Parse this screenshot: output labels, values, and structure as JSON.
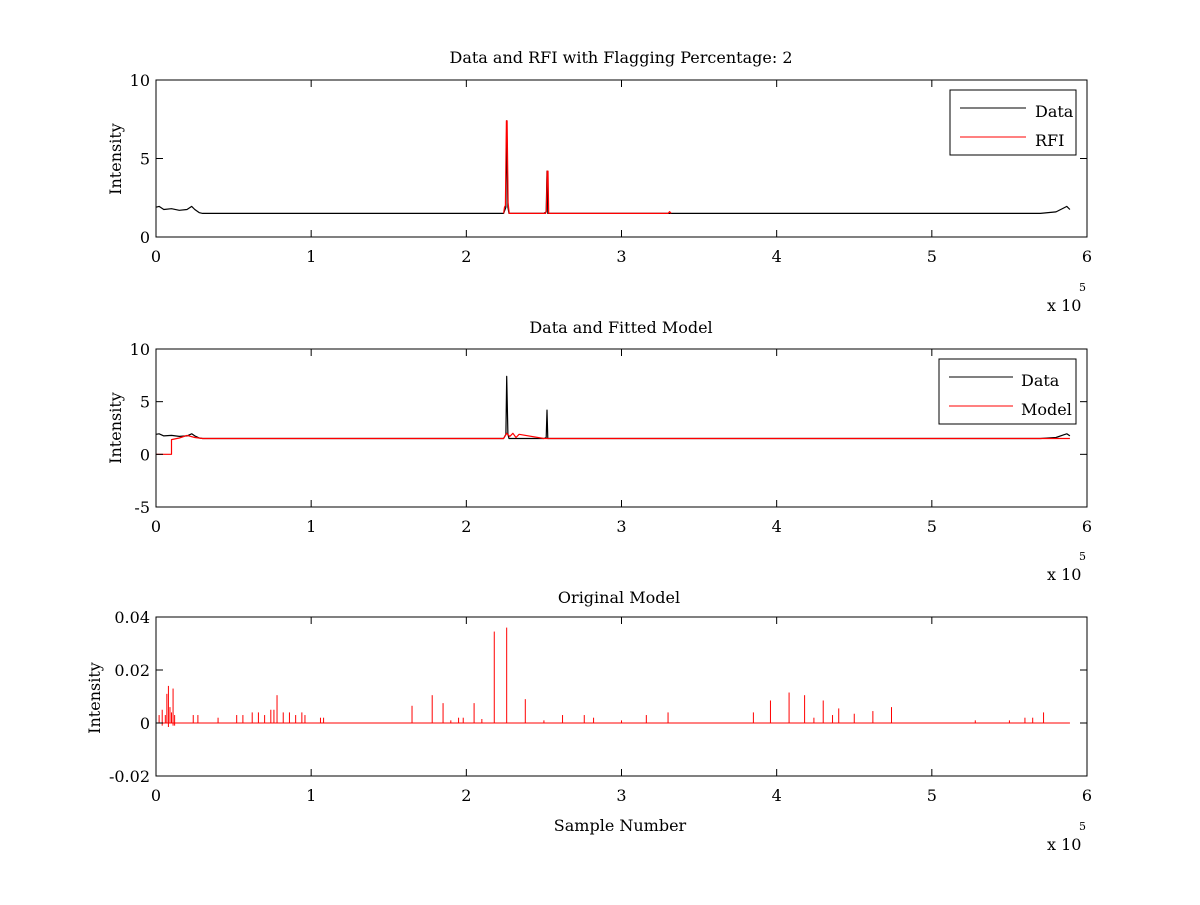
{
  "figure": {
    "background": "#ffffff",
    "axis_color": "#000000"
  },
  "chart_data": [
    {
      "type": "line",
      "title": "Data and RFI with Flagging Percentage: 2",
      "xlabel": "",
      "ylabel": "Intensity",
      "xlim": [
        0,
        600000
      ],
      "ylim": [
        0,
        10
      ],
      "xticks": [
        0,
        100000,
        200000,
        300000,
        400000,
        500000,
        600000
      ],
      "xtick_labels": [
        "0",
        "1",
        "2",
        "3",
        "4",
        "5",
        "6"
      ],
      "yticks": [
        0,
        5,
        10
      ],
      "ytick_labels": [
        "0",
        "5",
        "10"
      ],
      "x_multiplier": {
        "base": "x 10",
        "exp": "5"
      },
      "grid": false,
      "legend_position": "top-right",
      "series": [
        {
          "name": "Data",
          "color": "#000000",
          "x": [
            0,
            2000,
            5000,
            10000,
            15000,
            20000,
            23000,
            25000,
            28000,
            30000,
            100000,
            200000,
            224000,
            225500,
            226000,
            226800,
            227500,
            250000,
            251500,
            252000,
            252500,
            300000,
            400000,
            500000,
            570000,
            580000,
            585000,
            587000,
            589000
          ],
          "y": [
            1.9,
            1.95,
            1.75,
            1.8,
            1.7,
            1.75,
            1.95,
            1.75,
            1.55,
            1.5,
            1.5,
            1.5,
            1.5,
            1.9,
            7.4,
            1.9,
            1.5,
            1.5,
            1.6,
            4.2,
            1.5,
            1.5,
            1.5,
            1.5,
            1.5,
            1.6,
            1.85,
            1.95,
            1.75
          ]
        },
        {
          "name": "RFI",
          "color": "#ff0000",
          "x": [
            224000,
            224600,
            225200,
            225800,
            226300,
            226900,
            227600,
            251000,
            251600,
            252100,
            252600,
            253100,
            330000,
            331000,
            332000
          ],
          "y": [
            1.5,
            1.9,
            2.0,
            7.4,
            7.4,
            2.2,
            1.5,
            1.5,
            1.7,
            4.2,
            4.2,
            1.5,
            1.5,
            1.62,
            1.5
          ]
        }
      ]
    },
    {
      "type": "line",
      "title": "Data and Fitted Model",
      "xlabel": "",
      "ylabel": "Intensity",
      "xlim": [
        0,
        600000
      ],
      "ylim": [
        -5,
        10
      ],
      "xticks": [
        0,
        100000,
        200000,
        300000,
        400000,
        500000,
        600000
      ],
      "xtick_labels": [
        "0",
        "1",
        "2",
        "3",
        "4",
        "5",
        "6"
      ],
      "yticks": [
        -5,
        0,
        5,
        10
      ],
      "ytick_labels": [
        "-5",
        "0",
        "5",
        "10"
      ],
      "x_multiplier": {
        "base": "x 10",
        "exp": "5"
      },
      "grid": false,
      "legend_position": "top-right",
      "series": [
        {
          "name": "Data",
          "color": "#000000",
          "x": [
            0,
            2000,
            5000,
            10000,
            15000,
            20000,
            23000,
            25000,
            28000,
            30000,
            100000,
            200000,
            224000,
            225500,
            226000,
            226800,
            227500,
            250000,
            251500,
            252000,
            252500,
            300000,
            400000,
            500000,
            570000,
            580000,
            585000,
            587000,
            589000
          ],
          "y": [
            1.9,
            1.95,
            1.75,
            1.8,
            1.7,
            1.75,
            1.95,
            1.75,
            1.55,
            1.5,
            1.5,
            1.5,
            1.5,
            1.9,
            7.4,
            1.9,
            1.5,
            1.5,
            1.6,
            4.2,
            1.5,
            1.5,
            1.5,
            1.5,
            1.5,
            1.6,
            1.85,
            1.95,
            1.75
          ]
        },
        {
          "name": "Model",
          "color": "#ff0000",
          "x": [
            0,
            10000,
            10000,
            15000,
            20000,
            25000,
            30000,
            100000,
            200000,
            224000,
            226000,
            228000,
            230000,
            232000,
            234000,
            250000,
            300000,
            400000,
            500000,
            589000
          ],
          "y": [
            0,
            0,
            1.4,
            1.55,
            1.8,
            1.6,
            1.5,
            1.5,
            1.5,
            1.5,
            2.0,
            1.7,
            2.0,
            1.6,
            1.9,
            1.5,
            1.5,
            1.5,
            1.5,
            1.5
          ]
        }
      ]
    },
    {
      "type": "line",
      "title": "Original Model",
      "xlabel": "Sample Number",
      "ylabel": "Intensity",
      "xlim": [
        0,
        600000
      ],
      "ylim": [
        -0.02,
        0.04
      ],
      "xticks": [
        0,
        100000,
        200000,
        300000,
        400000,
        500000,
        600000
      ],
      "xtick_labels": [
        "0",
        "1",
        "2",
        "3",
        "4",
        "5",
        "6"
      ],
      "yticks": [
        -0.02,
        0,
        0.02,
        0.04
      ],
      "ytick_labels": [
        "-0.02",
        "0",
        "0.02",
        "0.04"
      ],
      "x_multiplier": {
        "base": "x 10",
        "exp": "5"
      },
      "grid": false,
      "legend_position": "none",
      "series": [
        {
          "name": "",
          "color": "#ff0000",
          "baseline": 0,
          "extent": [
            0,
            589000
          ],
          "spikes_x": [
            2000,
            4000,
            6000,
            7000,
            8000,
            9000,
            10000,
            11000,
            12000,
            24000,
            27000,
            40000,
            52000,
            56000,
            62000,
            66000,
            70000,
            74000,
            76000,
            78000,
            82000,
            86000,
            90000,
            94000,
            96000,
            106000,
            108000,
            165000,
            178000,
            185000,
            190000,
            195000,
            198000,
            205000,
            210000,
            218000,
            226000,
            238000,
            250000,
            262000,
            276000,
            282000,
            300000,
            316000,
            330000,
            385000,
            396000,
            408000,
            418000,
            424000,
            430000,
            436000,
            440000,
            450000,
            462000,
            474000,
            528000,
            550000,
            560000,
            565000,
            572000
          ],
          "spikes_y": [
            0.003,
            0.005,
            0.003,
            0.011,
            0.014,
            0.006,
            0.004,
            0.013,
            0.003,
            0.003,
            0.003,
            0.002,
            0.003,
            0.003,
            0.004,
            0.004,
            0.003,
            0.005,
            0.005,
            0.0105,
            0.004,
            0.004,
            0.003,
            0.004,
            0.003,
            0.002,
            0.002,
            0.0065,
            0.0105,
            0.0075,
            0.001,
            0.002,
            0.002,
            0.0075,
            0.0015,
            0.0345,
            0.036,
            0.009,
            0.001,
            0.003,
            0.003,
            0.002,
            0.001,
            0.003,
            0.004,
            0.004,
            0.0085,
            0.0115,
            0.0105,
            0.002,
            0.0085,
            0.003,
            0.0055,
            0.0035,
            0.0045,
            0.006,
            0.001,
            0.001,
            0.002,
            0.002,
            0.004
          ],
          "dips_x": [
            4000,
            8000,
            11000,
            12000
          ],
          "dips_y": [
            -0.001,
            -0.0015,
            -0.001,
            -0.001
          ]
        }
      ]
    }
  ]
}
